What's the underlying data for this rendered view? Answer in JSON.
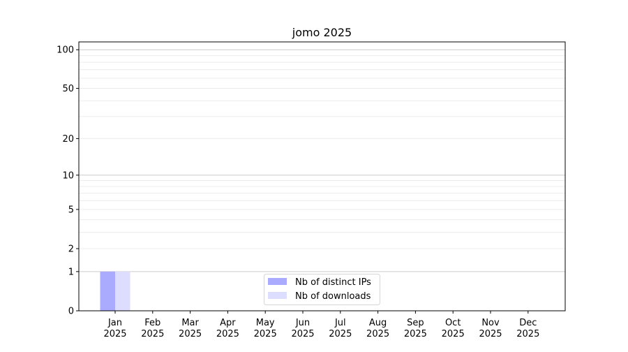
{
  "chart_data": {
    "type": "bar",
    "title": "jomo 2025",
    "xlabel": "",
    "ylabel": "",
    "yscale": "log(1+y)",
    "ylim": [
      0,
      115
    ],
    "yticks": [
      0,
      1,
      2,
      5,
      10,
      20,
      50,
      100
    ],
    "grid": true,
    "legend_position": "lower-center",
    "categories": [
      "Jan\n2025",
      "Feb\n2025",
      "Mar\n2025",
      "Apr\n2025",
      "May\n2025",
      "Jun\n2025",
      "Jul\n2025",
      "Aug\n2025",
      "Sep\n2025",
      "Oct\n2025",
      "Nov\n2025",
      "Dec\n2025"
    ],
    "series": [
      {
        "name": "Nb of distinct IPs",
        "color": "#aaaaff",
        "values": [
          1,
          0,
          0,
          0,
          0,
          0,
          0,
          0,
          0,
          0,
          0,
          0
        ]
      },
      {
        "name": "Nb of downloads",
        "color": "#ddddff",
        "values": [
          1,
          0,
          0,
          0,
          0,
          0,
          0,
          0,
          0,
          0,
          0,
          0
        ]
      }
    ]
  }
}
